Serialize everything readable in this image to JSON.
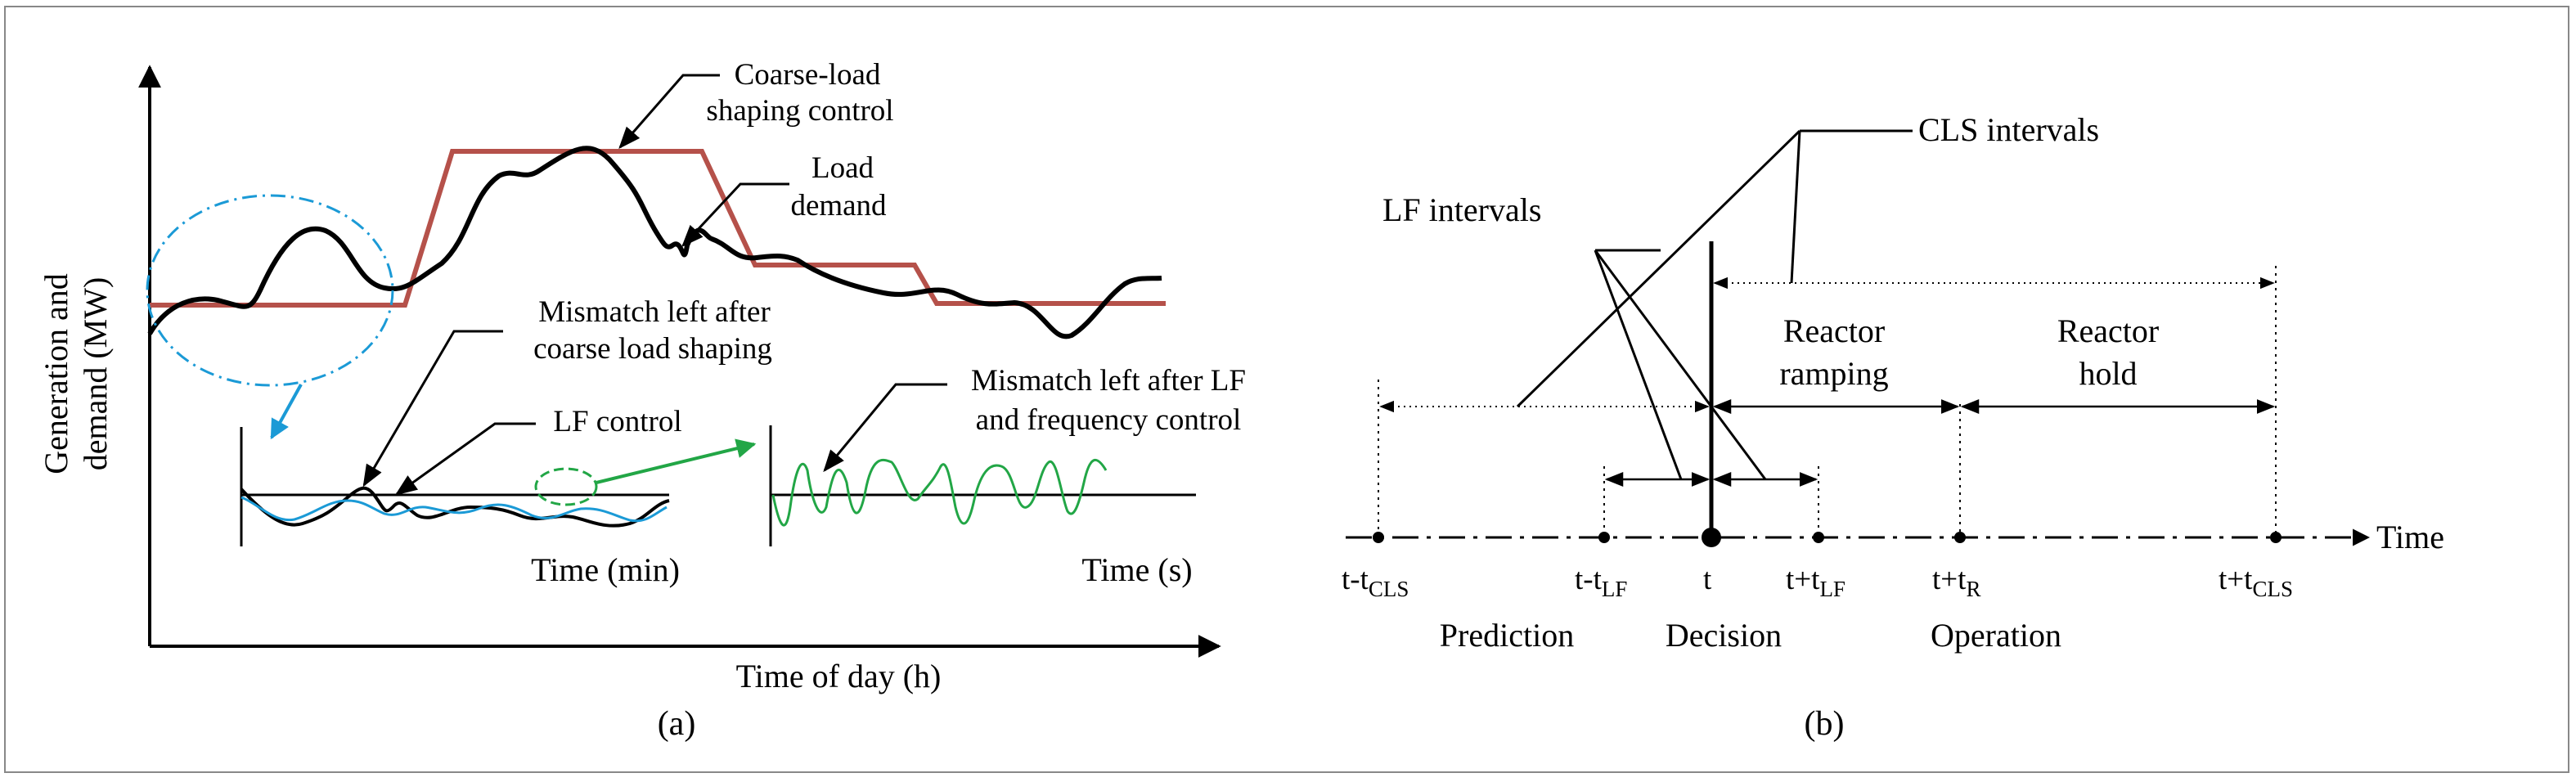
{
  "colors": {
    "coarse_load": "#b5514a",
    "demand": "#000000",
    "lf": "#1b9ad6",
    "mismatch_after": "#22a646",
    "highlight_blue": "#1b9ad6",
    "highlight_green": "#22a646"
  },
  "panel_a": {
    "caption": "(a)",
    "y_axis_label_line1": "Generation and",
    "y_axis_label_line2": "demand (MW)",
    "x_axis_label": "Time of day (h)",
    "callouts": {
      "coarse_load_line1": "Coarse-load",
      "coarse_load_line2": "shaping control",
      "load_demand_line1": "Load",
      "load_demand_line2": "demand",
      "mismatch_coarse_line1": "Mismatch left after",
      "mismatch_coarse_line2": "coarse load shaping",
      "lf_control": "LF control",
      "mismatch_lf_line1": "Mismatch left after LF",
      "mismatch_lf_line2": "and frequency control"
    },
    "inset_min_xlabel": "Time (min)",
    "inset_s_xlabel": "Time (s)"
  },
  "panel_b": {
    "caption": "(b)",
    "time_axis_label": "Time",
    "cls_intervals": "CLS intervals",
    "lf_intervals": "LF intervals",
    "reactor_ramping_line1": "Reactor",
    "reactor_ramping_line2": "ramping",
    "reactor_hold_line1": "Reactor",
    "reactor_hold_line2": "hold",
    "ticks": [
      {
        "main": "t-t",
        "sub": "CLS"
      },
      {
        "main": "t-t",
        "sub": "LF"
      },
      {
        "main": "t",
        "sub": ""
      },
      {
        "main": "t+t",
        "sub": "LF"
      },
      {
        "main": "t+t",
        "sub": "R"
      },
      {
        "main": "t+t",
        "sub": "CLS"
      }
    ],
    "phases": {
      "prediction": "Prediction",
      "decision": "Decision",
      "operation": "Operation"
    }
  }
}
